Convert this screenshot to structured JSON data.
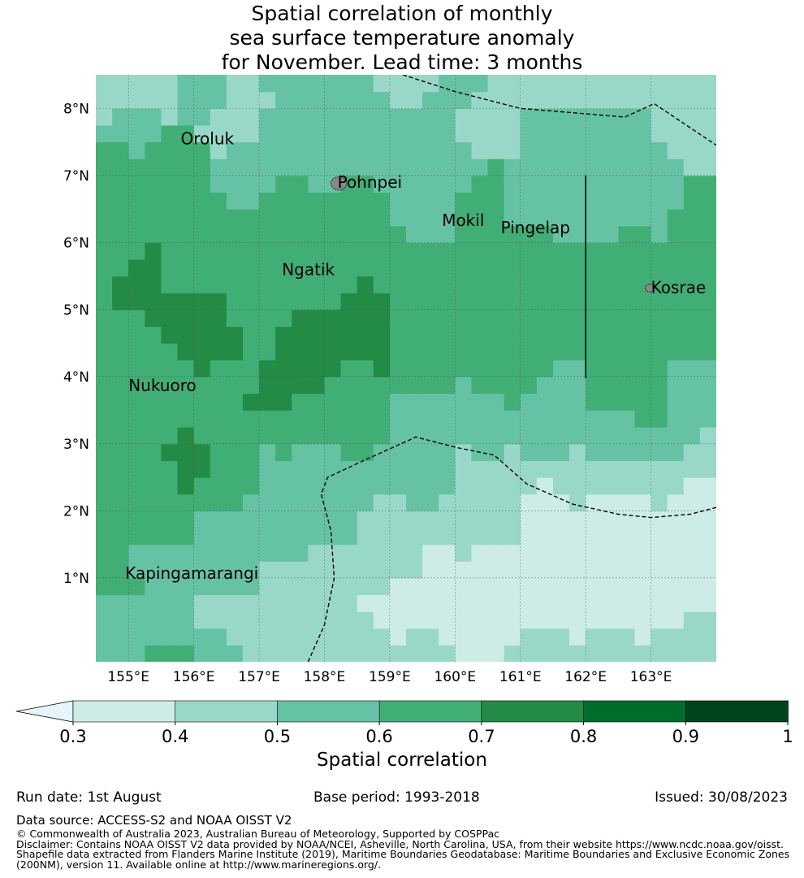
{
  "title_lines": [
    "Spatial correlation of monthly",
    "sea surface temperature anomaly",
    "for November. Lead time: 3 months"
  ],
  "map": {
    "lon_range": [
      154.5,
      164.0
    ],
    "lat_range": [
      -0.25,
      8.5
    ],
    "lon_ticks": [
      155,
      156,
      157,
      158,
      159,
      160,
      161,
      162,
      163
    ],
    "lon_tick_labels": [
      "155°E",
      "156°E",
      "157°E",
      "158°E",
      "159°E",
      "160°E",
      "161°E",
      "162°E",
      "163°E"
    ],
    "lat_ticks": [
      1,
      2,
      3,
      4,
      5,
      6,
      7,
      8
    ],
    "lat_tick_labels": [
      "1°N",
      "2°N",
      "3°N",
      "4°N",
      "5°N",
      "6°N",
      "7°N",
      "8°N"
    ],
    "grid_lines": true,
    "places": [
      {
        "name": "Oroluk",
        "lon": 155.8,
        "lat": 7.55
      },
      {
        "name": "Pohnpei",
        "lon": 158.2,
        "lat": 6.9
      },
      {
        "name": "Mokil",
        "lon": 159.8,
        "lat": 6.33
      },
      {
        "name": "Pingelap",
        "lon": 160.7,
        "lat": 6.22
      },
      {
        "name": "Ngatik",
        "lon": 157.35,
        "lat": 5.6
      },
      {
        "name": "Kosrae",
        "lon": 163.0,
        "lat": 5.33
      },
      {
        "name": "Nukuoro",
        "lon": 155.0,
        "lat": 3.87
      },
      {
        "name": "Kapingamarangi",
        "lon": 154.95,
        "lat": 1.07
      }
    ],
    "boundary_lines": [
      [
        [
          159.2,
          8.5
        ],
        [
          160.0,
          8.25
        ],
        [
          161.0,
          8.0
        ],
        [
          162.6,
          7.87
        ],
        [
          163.05,
          8.07
        ],
        [
          164.0,
          7.45
        ]
      ],
      [
        [
          157.75,
          -0.25
        ],
        [
          158.0,
          0.3
        ],
        [
          158.15,
          1.0
        ],
        [
          158.1,
          1.7
        ],
        [
          157.95,
          2.25
        ],
        [
          158.05,
          2.5
        ],
        [
          158.6,
          2.75
        ],
        [
          159.4,
          3.1
        ],
        [
          160.0,
          2.95
        ],
        [
          160.6,
          2.83
        ],
        [
          161.1,
          2.4
        ],
        [
          161.8,
          2.1
        ],
        [
          162.5,
          1.95
        ],
        [
          163.0,
          1.9
        ],
        [
          163.6,
          1.95
        ],
        [
          164.0,
          2.05
        ]
      ]
    ],
    "solid_line": [
      [
        162.0,
        7.0
      ],
      [
        162.0,
        3.98
      ]
    ],
    "field": {
      "description": "correlation at grid points (lon, lat)",
      "points": [
        [
          154.75,
          8.25,
          0.45
        ],
        [
          155.5,
          8.3,
          0.45
        ],
        [
          156.0,
          8.2,
          0.55
        ],
        [
          156.75,
          8.2,
          0.45
        ],
        [
          157.5,
          8.3,
          0.55
        ],
        [
          158.5,
          8.3,
          0.55
        ],
        [
          159.25,
          8.35,
          0.45
        ],
        [
          160.0,
          8.3,
          0.55
        ],
        [
          161.0,
          8.3,
          0.45
        ],
        [
          162.0,
          8.3,
          0.45
        ],
        [
          163.0,
          8.3,
          0.45
        ],
        [
          163.75,
          8.3,
          0.45
        ],
        [
          155.0,
          7.75,
          0.55
        ],
        [
          156.5,
          7.7,
          0.45
        ],
        [
          157.3,
          7.6,
          0.55
        ],
        [
          158.5,
          7.7,
          0.55
        ],
        [
          159.5,
          7.7,
          0.55
        ],
        [
          160.35,
          7.75,
          0.45
        ],
        [
          161.5,
          7.7,
          0.55
        ],
        [
          162.5,
          7.7,
          0.55
        ],
        [
          163.5,
          7.7,
          0.45
        ],
        [
          154.75,
          7.25,
          0.65
        ],
        [
          155.75,
          7.3,
          0.65
        ],
        [
          156.75,
          7.2,
          0.55
        ],
        [
          158.0,
          7.25,
          0.55
        ],
        [
          158.9,
          7.1,
          0.55
        ],
        [
          160.0,
          7.1,
          0.55
        ],
        [
          161.5,
          7.1,
          0.55
        ],
        [
          163.0,
          7.1,
          0.55
        ],
        [
          154.75,
          6.5,
          0.65
        ],
        [
          156.0,
          6.5,
          0.65
        ],
        [
          157.5,
          6.5,
          0.65
        ],
        [
          158.5,
          6.6,
          0.65
        ],
        [
          159.5,
          6.5,
          0.55
        ],
        [
          160.5,
          6.55,
          0.65
        ],
        [
          161.1,
          6.7,
          0.55
        ],
        [
          162.2,
          6.5,
          0.55
        ],
        [
          163.0,
          6.7,
          0.55
        ],
        [
          163.7,
          6.4,
          0.65
        ],
        [
          154.75,
          5.6,
          0.65
        ],
        [
          155.0,
          5.35,
          0.75
        ],
        [
          156.0,
          5.7,
          0.65
        ],
        [
          157.0,
          5.8,
          0.65
        ],
        [
          158.0,
          5.6,
          0.65
        ],
        [
          159.0,
          5.7,
          0.65
        ],
        [
          160.0,
          5.6,
          0.65
        ],
        [
          161.0,
          5.7,
          0.65
        ],
        [
          162.5,
          5.7,
          0.65
        ],
        [
          163.5,
          5.6,
          0.65
        ],
        [
          154.75,
          4.75,
          0.65
        ],
        [
          156.1,
          4.75,
          0.75
        ],
        [
          156.3,
          4.45,
          0.75
        ],
        [
          157.0,
          4.75,
          0.65
        ],
        [
          157.5,
          4.5,
          0.75
        ],
        [
          158.0,
          4.5,
          0.75
        ],
        [
          158.75,
          4.9,
          0.75
        ],
        [
          158.7,
          4.4,
          0.75
        ],
        [
          159.3,
          4.75,
          0.65
        ],
        [
          160.5,
          4.75,
          0.65
        ],
        [
          161.5,
          4.6,
          0.65
        ],
        [
          162.5,
          4.6,
          0.65
        ],
        [
          163.5,
          4.75,
          0.65
        ],
        [
          154.75,
          4.0,
          0.65
        ],
        [
          155.5,
          4.0,
          0.65
        ],
        [
          156.5,
          4.0,
          0.65
        ],
        [
          157.3,
          3.9,
          0.75
        ],
        [
          157.7,
          4.1,
          0.75
        ],
        [
          158.5,
          3.9,
          0.65
        ],
        [
          159.5,
          4.0,
          0.65
        ],
        [
          160.5,
          4.1,
          0.65
        ],
        [
          161.0,
          4.05,
          0.65
        ],
        [
          161.5,
          3.7,
          0.55
        ],
        [
          162.5,
          3.8,
          0.65
        ],
        [
          163.0,
          3.75,
          0.65
        ],
        [
          163.6,
          3.85,
          0.55
        ],
        [
          154.75,
          3.3,
          0.65
        ],
        [
          155.5,
          3.4,
          0.65
        ],
        [
          155.9,
          2.8,
          0.75
        ],
        [
          156.5,
          3.2,
          0.65
        ],
        [
          157.5,
          3.3,
          0.65
        ],
        [
          158.4,
          3.3,
          0.65
        ],
        [
          159.4,
          3.3,
          0.55
        ],
        [
          160.0,
          3.5,
          0.55
        ],
        [
          160.5,
          3.3,
          0.55
        ],
        [
          161.5,
          3.0,
          0.55
        ],
        [
          162.5,
          3.1,
          0.55
        ],
        [
          163.5,
          3.2,
          0.55
        ],
        [
          163.8,
          2.9,
          0.45
        ],
        [
          154.75,
          2.5,
          0.65
        ],
        [
          155.5,
          2.6,
          0.65
        ],
        [
          156.5,
          2.5,
          0.65
        ],
        [
          157.3,
          2.4,
          0.55
        ],
        [
          157.75,
          2.6,
          0.55
        ],
        [
          158.5,
          2.4,
          0.55
        ],
        [
          159.5,
          2.5,
          0.55
        ],
        [
          160.3,
          2.4,
          0.45
        ],
        [
          161.0,
          2.5,
          0.45
        ],
        [
          161.75,
          2.6,
          0.45
        ],
        [
          162.5,
          2.5,
          0.45
        ],
        [
          163.3,
          2.4,
          0.45
        ],
        [
          163.75,
          2.25,
          0.35
        ],
        [
          154.75,
          1.75,
          0.65
        ],
        [
          155.5,
          1.8,
          0.65
        ],
        [
          156.5,
          1.7,
          0.55
        ],
        [
          157.3,
          1.6,
          0.55
        ],
        [
          158.0,
          1.8,
          0.55
        ],
        [
          159.0,
          1.75,
          0.45
        ],
        [
          160.0,
          1.8,
          0.45
        ],
        [
          160.8,
          1.9,
          0.45
        ],
        [
          161.3,
          2.1,
          0.35
        ],
        [
          162.5,
          1.9,
          0.35
        ],
        [
          163.5,
          1.9,
          0.35
        ],
        [
          161.5,
          1.6,
          0.35
        ],
        [
          163.0,
          1.5,
          0.35
        ],
        [
          154.75,
          1.0,
          0.65
        ],
        [
          155.5,
          1.1,
          0.55
        ],
        [
          156.5,
          1.0,
          0.55
        ],
        [
          157.3,
          0.8,
          0.45
        ],
        [
          158.0,
          1.0,
          0.45
        ],
        [
          158.7,
          1.1,
          0.45
        ],
        [
          159.2,
          1.35,
          0.45
        ],
        [
          159.8,
          1.0,
          0.35
        ],
        [
          160.7,
          1.0,
          0.35
        ],
        [
          161.7,
          1.0,
          0.35
        ],
        [
          162.7,
          1.0,
          0.35
        ],
        [
          163.6,
          1.0,
          0.35
        ],
        [
          154.75,
          0.3,
          0.55
        ],
        [
          155.6,
          0.3,
          0.55
        ],
        [
          156.5,
          0.35,
          0.45
        ],
        [
          157.3,
          0.3,
          0.45
        ],
        [
          158.0,
          0.2,
          0.45
        ],
        [
          158.6,
          0.2,
          0.45
        ],
        [
          159.0,
          0.5,
          0.35
        ],
        [
          160.0,
          0.5,
          0.35
        ],
        [
          161.0,
          0.45,
          0.35
        ],
        [
          162.0,
          0.4,
          0.35
        ],
        [
          163.0,
          0.45,
          0.35
        ],
        [
          163.7,
          0.1,
          0.45
        ],
        [
          154.75,
          -0.1,
          0.55
        ],
        [
          155.6,
          -0.1,
          0.65
        ],
        [
          156.3,
          -0.1,
          0.55
        ],
        [
          157.3,
          -0.1,
          0.45
        ],
        [
          158.5,
          -0.1,
          0.45
        ],
        [
          159.5,
          -0.1,
          0.45
        ],
        [
          160.4,
          -0.1,
          0.35
        ],
        [
          161.3,
          -0.1,
          0.45
        ],
        [
          162.3,
          -0.1,
          0.45
        ],
        [
          163.3,
          -0.1,
          0.45
        ]
      ]
    },
    "islands": [
      {
        "name": "Pohnpei",
        "lon": 158.22,
        "lat": 6.88,
        "size": 0.12
      },
      {
        "name": "Kosrae",
        "lon": 162.98,
        "lat": 5.32,
        "size": 0.07
      }
    ]
  },
  "colorbar": {
    "ticks": [
      "0.3",
      "0.4",
      "0.5",
      "0.6",
      "0.7",
      "0.8",
      "0.9",
      "1"
    ],
    "colors": [
      "#cdece5",
      "#99d8c9",
      "#66c2a4",
      "#41ae76",
      "#238b45",
      "#006d2c",
      "#00441b"
    ],
    "under_color": "#e5f5f9",
    "label": "Spatial correlation"
  },
  "footer": {
    "run_date": "Run date: 1st August",
    "base_period": "Base period: 1993-2018",
    "issued": "Issued: 30/08/2023",
    "data_source": "Data source: ACCESS-S2 and NOAA OISST V2",
    "copyright": "© Commonwealth of Australia 2023, Australian Bureau of Meteorology, Supported by COSPPac",
    "disclaimer_lines": [
      "Disclaimer: Contains NOAA OISST V2 data provided by NOAA/NCEI, Asheville, North Carolina, USA, from their website https://www.ncdc.noaa.gov/oisst.",
      "Shapefile data extracted from Flanders Marine Institute (2019), Maritime Boundaries Geodatabase: Maritime Boundaries and Exclusive Economic Zones",
      "(200NM), version 11. Available online at http://www.marineregions.org/."
    ]
  }
}
